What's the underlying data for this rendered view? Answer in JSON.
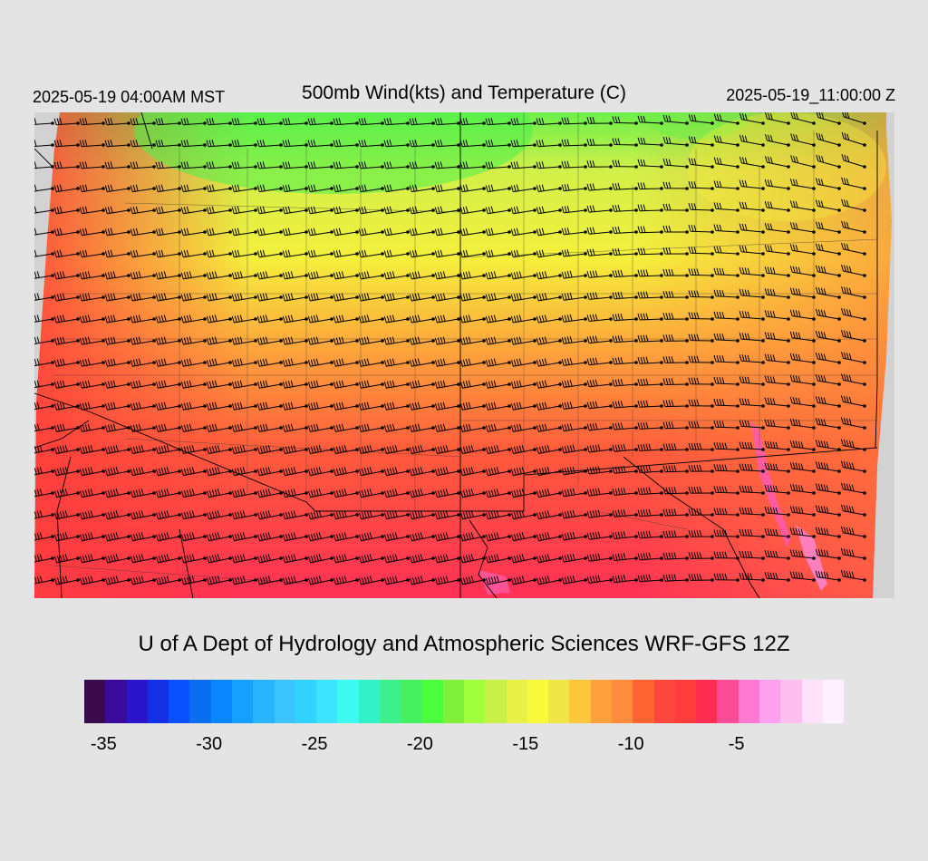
{
  "header": {
    "valid_local": "2025-05-19 04:00AM MST",
    "title": "500mb Wind(kts) and Temperature (C)",
    "valid_utc": "2025-05-19_11:00:00 Z"
  },
  "credit": "U of A Dept of Hydrology and Atmospheric Sciences WRF-GFS 12Z",
  "colorbar": {
    "colors": [
      "#3a0a4a",
      "#3a0a9a",
      "#2a14cc",
      "#1430e6",
      "#0a50ff",
      "#0a6ef0",
      "#0a86ff",
      "#14a0ff",
      "#28b4ff",
      "#3cc4ff",
      "#32d2ff",
      "#3ce4ff",
      "#3cfaf0",
      "#32f0c8",
      "#3cf08c",
      "#46f060",
      "#4cff3c",
      "#80f03c",
      "#a0ff3c",
      "#c8f046",
      "#e6f046",
      "#fafa3c",
      "#f0e646",
      "#ffc83c",
      "#ffa03c",
      "#ff8c3c",
      "#ff6432",
      "#ff463c",
      "#ff3c3c",
      "#ff2d50",
      "#ff4c96",
      "#ff78d2",
      "#ffa0f0",
      "#ffbef0",
      "#ffe1fa",
      "#fff0ff"
    ],
    "ticks": [
      {
        "value": "-35",
        "index": 1
      },
      {
        "value": "-30",
        "index": 6
      },
      {
        "value": "-25",
        "index": 11
      },
      {
        "value": "-20",
        "index": 16
      },
      {
        "value": "-15",
        "index": 21
      },
      {
        "value": "-10",
        "index": 26
      },
      {
        "value": "-5",
        "index": 31
      }
    ]
  }
}
